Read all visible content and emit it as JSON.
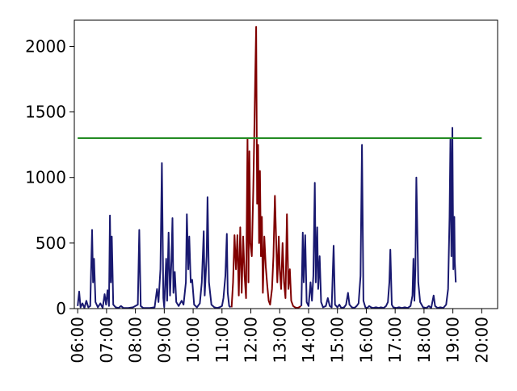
{
  "chart_data": {
    "type": "line",
    "title": "",
    "xlabel": "",
    "ylabel": "",
    "xlim": [
      "05:53",
      "20:33"
    ],
    "ylim": [
      0,
      2200
    ],
    "grid": false,
    "x_ticks": [
      "06:00",
      "07:00",
      "08:00",
      "09:00",
      "10:00",
      "11:00",
      "12:00",
      "13:00",
      "14:00",
      "15:00",
      "16:00",
      "17:00",
      "18:00",
      "19:00",
      "20:00"
    ],
    "y_ticks": [
      0,
      500,
      1000,
      1500,
      2000
    ],
    "colors": {
      "normal": "#191970",
      "highlight": "#800000",
      "threshold": "#228b22"
    },
    "threshold": {
      "value": 1300,
      "x_start": "06:00",
      "x_end": "20:00"
    },
    "highlight_range": [
      "11:20",
      "13:45"
    ],
    "series": [
      {
        "points": [
          [
            "06:00",
            20
          ],
          [
            "06:03",
            130
          ],
          [
            "06:06",
            10
          ],
          [
            "06:10",
            40
          ],
          [
            "06:14",
            5
          ],
          [
            "06:18",
            60
          ],
          [
            "06:22",
            10
          ],
          [
            "06:26",
            20
          ],
          [
            "06:30",
            600
          ],
          [
            "06:32",
            200
          ],
          [
            "06:34",
            380
          ],
          [
            "06:37",
            50
          ],
          [
            "06:42",
            10
          ],
          [
            "06:47",
            40
          ],
          [
            "06:52",
            5
          ],
          [
            "06:56",
            110
          ],
          [
            "06:59",
            30
          ],
          [
            "07:02",
            140
          ],
          [
            "07:05",
            20
          ],
          [
            "07:07",
            710
          ],
          [
            "07:09",
            200
          ],
          [
            "07:11",
            550
          ],
          [
            "07:14",
            30
          ],
          [
            "07:19",
            10
          ],
          [
            "07:25",
            5
          ],
          [
            "07:30",
            20
          ],
          [
            "07:35",
            5
          ],
          [
            "07:45",
            5
          ],
          [
            "07:55",
            10
          ],
          [
            "08:05",
            30
          ],
          [
            "08:08",
            600
          ],
          [
            "08:11",
            20
          ],
          [
            "08:16",
            5
          ],
          [
            "08:30",
            5
          ],
          [
            "08:40",
            10
          ],
          [
            "08:45",
            150
          ],
          [
            "08:48",
            50
          ],
          [
            "08:52",
            300
          ],
          [
            "08:55",
            1110
          ],
          [
            "08:58",
            80
          ],
          [
            "09:00",
            10
          ],
          [
            "09:04",
            380
          ],
          [
            "09:06",
            60
          ],
          [
            "09:09",
            580
          ],
          [
            "09:12",
            100
          ],
          [
            "09:15",
            380
          ],
          [
            "09:17",
            690
          ],
          [
            "09:19",
            120
          ],
          [
            "09:22",
            280
          ],
          [
            "09:25",
            50
          ],
          [
            "09:30",
            20
          ],
          [
            "09:36",
            60
          ],
          [
            "09:40",
            30
          ],
          [
            "09:45",
            200
          ],
          [
            "09:47",
            720
          ],
          [
            "09:50",
            300
          ],
          [
            "09:52",
            550
          ],
          [
            "09:55",
            200
          ],
          [
            "09:58",
            220
          ],
          [
            "10:02",
            30
          ],
          [
            "10:08",
            10
          ],
          [
            "10:14",
            40
          ],
          [
            "10:18",
            200
          ],
          [
            "10:22",
            590
          ],
          [
            "10:24",
            100
          ],
          [
            "10:28",
            400
          ],
          [
            "10:30",
            850
          ],
          [
            "10:33",
            200
          ],
          [
            "10:38",
            30
          ],
          [
            "10:44",
            10
          ],
          [
            "10:50",
            5
          ],
          [
            "10:55",
            10
          ],
          [
            "11:00",
            20
          ],
          [
            "11:03",
            80
          ],
          [
            "11:07",
            250
          ],
          [
            "11:10",
            570
          ],
          [
            "11:12",
            120
          ],
          [
            "11:15",
            20
          ],
          [
            "11:18",
            10
          ]
        ]
      },
      {
        "highlight": true,
        "points": [
          [
            "11:20",
            10
          ],
          [
            "11:23",
            200
          ],
          [
            "11:26",
            560
          ],
          [
            "11:29",
            300
          ],
          [
            "11:32",
            560
          ],
          [
            "11:35",
            100
          ],
          [
            "11:38",
            620
          ],
          [
            "11:41",
            120
          ],
          [
            "11:44",
            550
          ],
          [
            "11:47",
            250
          ],
          [
            "11:50",
            80
          ],
          [
            "11:53",
            1300
          ],
          [
            "11:55",
            200
          ],
          [
            "11:57",
            1200
          ],
          [
            "11:59",
            500
          ],
          [
            "12:02",
            400
          ],
          [
            "12:05",
            900
          ],
          [
            "12:07",
            1300
          ],
          [
            "12:09",
            1750
          ],
          [
            "12:11",
            2150
          ],
          [
            "12:13",
            800
          ],
          [
            "12:15",
            1250
          ],
          [
            "12:17",
            500
          ],
          [
            "12:19",
            1050
          ],
          [
            "12:21",
            400
          ],
          [
            "12:23",
            700
          ],
          [
            "12:25",
            120
          ],
          [
            "12:28",
            550
          ],
          [
            "12:31",
            320
          ],
          [
            "12:34",
            180
          ],
          [
            "12:37",
            60
          ],
          [
            "12:40",
            30
          ],
          [
            "12:44",
            150
          ],
          [
            "12:47",
            400
          ],
          [
            "12:50",
            860
          ],
          [
            "12:52",
            600
          ],
          [
            "12:55",
            200
          ],
          [
            "12:58",
            550
          ],
          [
            "13:00",
            300
          ],
          [
            "13:03",
            150
          ],
          [
            "13:06",
            500
          ],
          [
            "13:09",
            200
          ],
          [
            "13:12",
            80
          ],
          [
            "13:15",
            720
          ],
          [
            "13:18",
            150
          ],
          [
            "13:21",
            300
          ],
          [
            "13:24",
            60
          ],
          [
            "13:28",
            20
          ],
          [
            "13:32",
            10
          ],
          [
            "13:36",
            5
          ],
          [
            "13:40",
            10
          ],
          [
            "13:44",
            20
          ]
        ]
      },
      {
        "points": [
          [
            "13:45",
            20
          ],
          [
            "13:48",
            580
          ],
          [
            "13:50",
            200
          ],
          [
            "13:53",
            560
          ],
          [
            "13:56",
            50
          ],
          [
            "14:00",
            20
          ],
          [
            "14:04",
            200
          ],
          [
            "14:07",
            60
          ],
          [
            "14:10",
            250
          ],
          [
            "14:13",
            960
          ],
          [
            "14:15",
            200
          ],
          [
            "14:18",
            620
          ],
          [
            "14:20",
            150
          ],
          [
            "14:23",
            400
          ],
          [
            "14:26",
            50
          ],
          [
            "14:30",
            10
          ],
          [
            "14:36",
            20
          ],
          [
            "14:40",
            80
          ],
          [
            "14:44",
            20
          ],
          [
            "14:48",
            10
          ],
          [
            "14:52",
            480
          ],
          [
            "14:55",
            30
          ],
          [
            "15:00",
            10
          ],
          [
            "15:04",
            30
          ],
          [
            "15:08",
            5
          ],
          [
            "15:14",
            10
          ],
          [
            "15:18",
            30
          ],
          [
            "15:22",
            120
          ],
          [
            "15:25",
            30
          ],
          [
            "15:30",
            10
          ],
          [
            "15:35",
            5
          ],
          [
            "15:40",
            20
          ],
          [
            "15:44",
            40
          ],
          [
            "15:48",
            250
          ],
          [
            "15:51",
            1250
          ],
          [
            "15:54",
            60
          ],
          [
            "15:58",
            10
          ],
          [
            "16:02",
            5
          ],
          [
            "16:06",
            20
          ],
          [
            "16:10",
            10
          ],
          [
            "16:14",
            5
          ],
          [
            "16:20",
            10
          ],
          [
            "16:26",
            5
          ],
          [
            "16:30",
            10
          ],
          [
            "16:36",
            5
          ],
          [
            "16:41",
            20
          ],
          [
            "16:45",
            50
          ],
          [
            "16:48",
            200
          ],
          [
            "16:50",
            450
          ],
          [
            "16:53",
            30
          ],
          [
            "16:56",
            10
          ],
          [
            "17:02",
            5
          ],
          [
            "17:08",
            10
          ],
          [
            "17:14",
            5
          ],
          [
            "17:20",
            10
          ],
          [
            "17:26",
            5
          ],
          [
            "17:32",
            20
          ],
          [
            "17:36",
            100
          ],
          [
            "17:38",
            380
          ],
          [
            "17:40",
            60
          ],
          [
            "17:42",
            300
          ],
          [
            "17:44",
            1000
          ],
          [
            "17:46",
            600
          ],
          [
            "17:48",
            200
          ],
          [
            "17:52",
            50
          ],
          [
            "17:58",
            10
          ],
          [
            "18:05",
            5
          ],
          [
            "18:10",
            20
          ],
          [
            "18:15",
            5
          ],
          [
            "18:20",
            100
          ],
          [
            "18:23",
            20
          ],
          [
            "18:28",
            5
          ],
          [
            "18:34",
            10
          ],
          [
            "18:40",
            5
          ],
          [
            "18:46",
            30
          ],
          [
            "18:50",
            150
          ],
          [
            "18:53",
            700
          ],
          [
            "18:55",
            1300
          ],
          [
            "18:57",
            400
          ],
          [
            "18:59",
            1380
          ],
          [
            "19:01",
            300
          ],
          [
            "19:03",
            700
          ],
          [
            "19:04",
            360
          ],
          [
            "19:06",
            200
          ]
        ]
      }
    ]
  }
}
